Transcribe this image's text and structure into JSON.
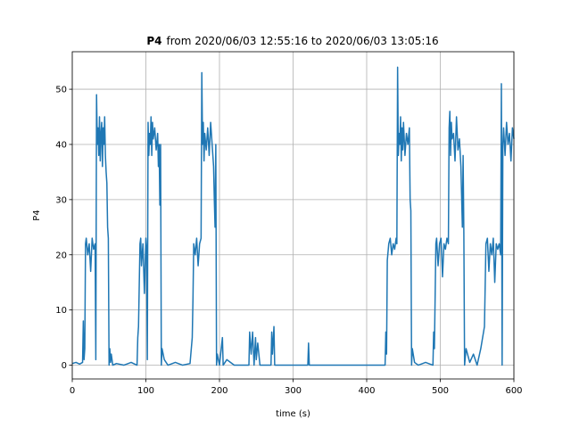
{
  "chart_data": {
    "type": "line",
    "title_parts": [
      "P4",
      "from 2020/06/03 12:55:16 to 2020/06/03 13:05:16"
    ],
    "xlabel": "time (s)",
    "ylabel": "P4",
    "xlim": [
      0,
      600
    ],
    "ylim": [
      -2.5,
      56.8
    ],
    "xticks": [
      0,
      100,
      200,
      300,
      400,
      500,
      600
    ],
    "yticks": [
      0,
      10,
      20,
      30,
      40,
      50
    ],
    "grid": true,
    "series": [
      {
        "name": "P4",
        "color": "#1f77b4",
        "x": [
          0,
          5,
          10,
          14,
          15,
          16,
          17,
          18,
          19,
          21,
          23,
          25,
          27,
          29,
          31,
          32,
          33,
          34,
          35,
          36,
          37,
          38,
          39,
          40,
          41,
          42,
          43,
          44,
          45,
          46,
          47,
          48,
          49,
          50,
          51,
          52,
          53,
          55,
          60,
          70,
          80,
          88,
          89,
          90,
          92,
          93,
          94,
          96,
          98,
          100,
          101,
          102,
          103,
          104,
          105,
          106,
          107,
          108,
          109,
          110,
          112,
          114,
          116,
          117,
          118,
          119,
          120,
          121,
          122,
          125,
          130,
          140,
          150,
          160,
          163,
          164,
          165,
          167,
          169,
          171,
          173,
          175,
          176,
          177,
          178,
          179,
          180,
          182,
          184,
          186,
          188,
          190,
          192,
          193,
          194,
          195,
          196,
          197,
          200,
          204,
          205,
          210,
          220,
          240,
          241,
          243,
          245,
          247,
          249,
          250,
          252,
          255,
          270,
          271,
          272,
          274,
          275,
          280,
          320,
          321,
          322,
          330,
          400,
          425,
          426,
          427,
          428,
          430,
          432,
          434,
          436,
          438,
          440,
          441,
          442,
          443,
          444,
          445,
          446,
          447,
          448,
          449,
          450,
          452,
          454,
          456,
          458,
          459,
          460,
          461,
          462,
          465,
          470,
          480,
          490,
          491,
          492,
          494,
          495,
          497,
          499,
          501,
          503,
          505,
          507,
          509,
          511,
          512,
          513,
          514,
          515,
          516,
          518,
          520,
          522,
          524,
          526,
          528,
          530,
          531,
          532,
          533,
          535,
          540,
          545,
          550,
          555,
          560,
          562,
          564,
          566,
          568,
          570,
          572,
          574,
          576,
          578,
          580,
          582,
          583,
          584,
          585,
          586,
          588,
          590,
          592,
          594,
          596,
          598,
          600
        ],
        "values": [
          0.3,
          0.5,
          0.2,
          0.5,
          8,
          1,
          3,
          22,
          23,
          20,
          22,
          17,
          23,
          21,
          22,
          1,
          49,
          40,
          43,
          38,
          45,
          37,
          42,
          44,
          36,
          43,
          40,
          45,
          38,
          35,
          33,
          25,
          23,
          0,
          3,
          0.5,
          2,
          0,
          0.3,
          0,
          0.5,
          0,
          5,
          7,
          22,
          23,
          18,
          22,
          13,
          23,
          21,
          1,
          44,
          38,
          42,
          40,
          45,
          38,
          44,
          41,
          43,
          39,
          42,
          36,
          40,
          29,
          40,
          0,
          3,
          1,
          0,
          0.5,
          0,
          0.3,
          5,
          12,
          22,
          20,
          23,
          18,
          22,
          23,
          53,
          40,
          44,
          37,
          42,
          39,
          43,
          38,
          44,
          40,
          36,
          30,
          25,
          40,
          0,
          2,
          0,
          5,
          0,
          1,
          0,
          0,
          6,
          2,
          6,
          0,
          5,
          1,
          4,
          0,
          0,
          6,
          2,
          7,
          0,
          0,
          0,
          4,
          0,
          0,
          0,
          0,
          6,
          2,
          19,
          22,
          23,
          20,
          22,
          21,
          23,
          22,
          54,
          38,
          42,
          40,
          45,
          37,
          43,
          39,
          44,
          38,
          42,
          40,
          43,
          30,
          28,
          0,
          3,
          0.5,
          0,
          0.5,
          0,
          6,
          3,
          22,
          23,
          18,
          22,
          23,
          16,
          22,
          21,
          23,
          22,
          43,
          46,
          38,
          44,
          41,
          42,
          37,
          45,
          39,
          41,
          36,
          25,
          38,
          24,
          0,
          3,
          0.5,
          2,
          0,
          3,
          7,
          22,
          23,
          17,
          22,
          20,
          23,
          15,
          22,
          21,
          22,
          20,
          51,
          0,
          40,
          43,
          38,
          44,
          40,
          42,
          37,
          43,
          41
        ]
      }
    ]
  }
}
